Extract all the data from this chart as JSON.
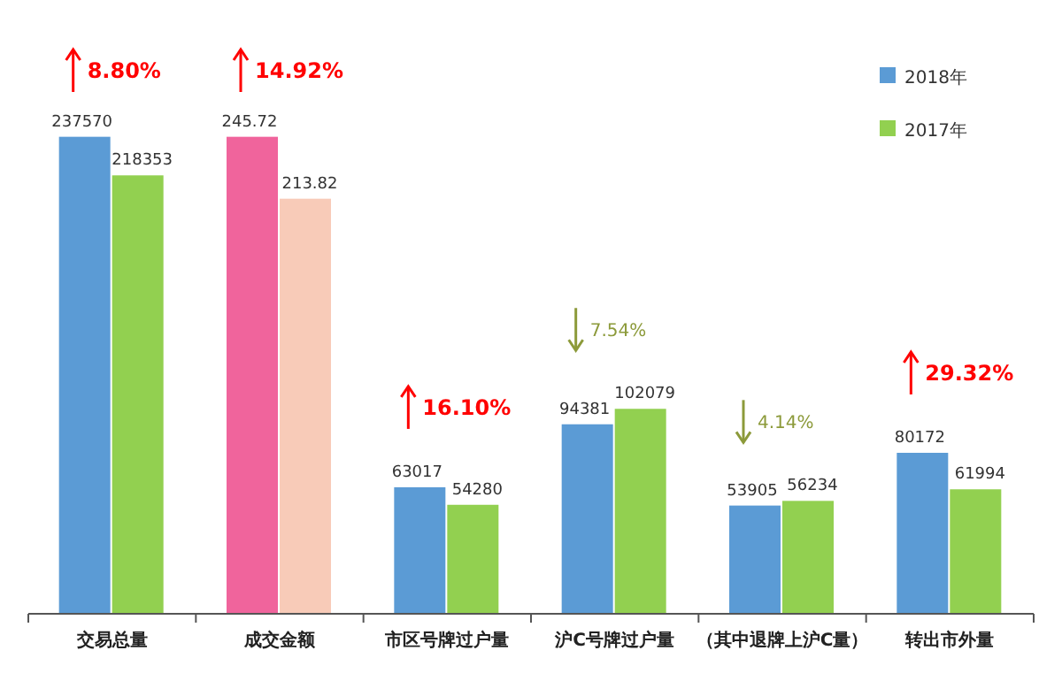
{
  "chart_data": {
    "type": "bar",
    "categories": [
      "交易总量",
      "成交金额",
      "市区号牌过户量",
      "沪C号牌过户量",
      "（其中退牌上沪C量）",
      "转出市外量"
    ],
    "series": [
      {
        "name": "2018年",
        "color": "#5b9bd5",
        "values": [
          237570,
          null,
          63017,
          94381,
          53905,
          80172
        ]
      },
      {
        "name": "2017年",
        "color": "#92d050",
        "values": [
          218353,
          null,
          54280,
          102079,
          56234,
          61994
        ]
      },
      {
        "color": "#f0649c",
        "axis": "y2",
        "values": [
          null,
          245.72,
          null,
          null,
          null,
          null
        ]
      },
      {
        "color": "#f8cbb8",
        "axis": "y2",
        "values": [
          null,
          213.82,
          null,
          null,
          null,
          null
        ]
      }
    ],
    "tick_labels": "x",
    "data_labels": true,
    "legend": "top right",
    "annotations": [
      "8.80%",
      "14.92%",
      "16.10%",
      "7.54%",
      "4.14%",
      "29.32%"
    ]
  }
}
